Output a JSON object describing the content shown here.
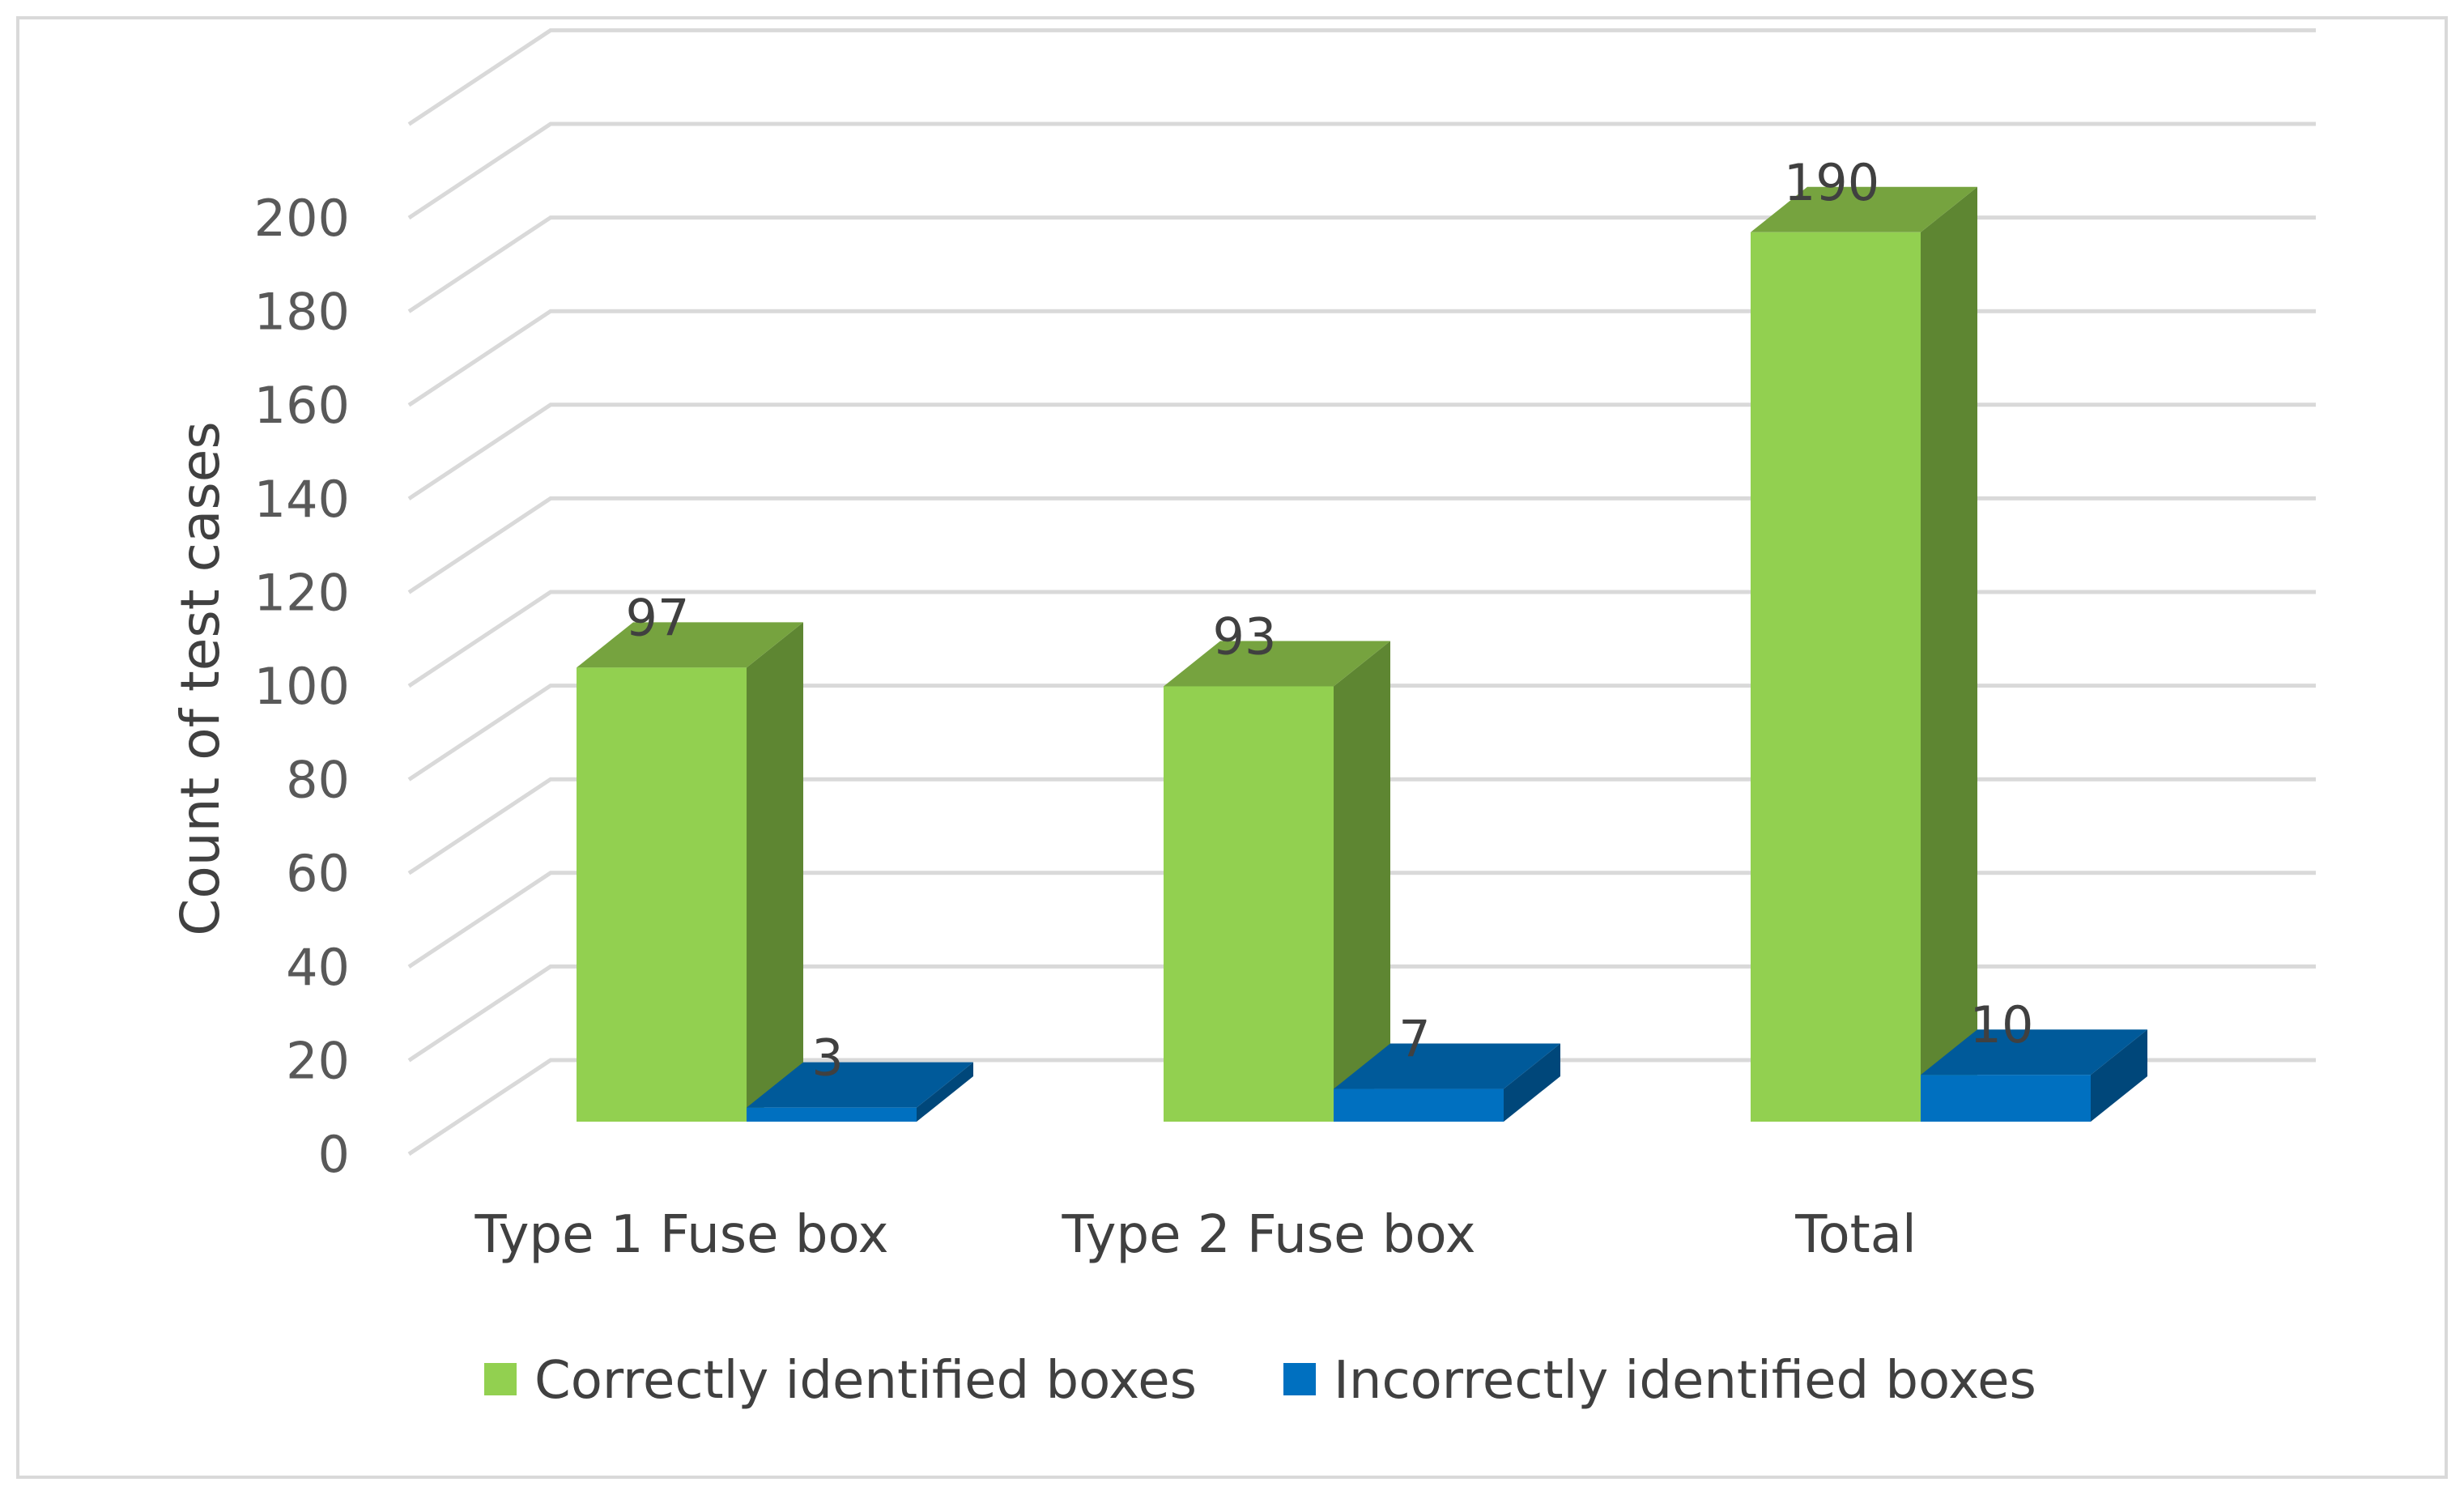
{
  "chart_data": {
    "type": "bar",
    "three_d": true,
    "title": "",
    "xlabel": "",
    "ylabel": "Count of test cases",
    "ylim": [
      0,
      200
    ],
    "ytick_step": 20,
    "yticks": [
      "0",
      "20",
      "40",
      "60",
      "80",
      "100",
      "120",
      "140",
      "160",
      "180",
      "200"
    ],
    "grid": true,
    "legend_position": "bottom",
    "categories": [
      "Type 1 Fuse box",
      "Type 2 Fuse box",
      "Total"
    ],
    "series": [
      {
        "name": "Correctly identified boxes",
        "values": [
          97,
          93,
          190
        ],
        "labels": [
          "97",
          "93",
          "190"
        ],
        "colors": {
          "front": "#92d050",
          "top": "#76a33f",
          "side": "#5e8632"
        }
      },
      {
        "name": "Incorrectly identified boxes",
        "values": [
          3,
          7,
          10
        ],
        "labels": [
          "3",
          "7",
          "10"
        ],
        "colors": {
          "front": "#0070c0",
          "top": "#005a9a",
          "side": "#00477a"
        }
      }
    ]
  }
}
